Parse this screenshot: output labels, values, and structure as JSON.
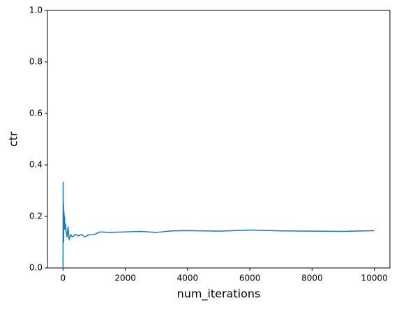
{
  "chart_data": {
    "type": "line",
    "xlabel": "num_iterations",
    "ylabel": "ctr",
    "xlim": [
      -500,
      10500
    ],
    "ylim": [
      0,
      1
    ],
    "xticks": [
      0,
      2000,
      4000,
      6000,
      8000,
      10000
    ],
    "yticks": [
      {
        "value": 0,
        "label": "0.0"
      },
      0.2,
      0.4,
      0.6,
      0.8,
      {
        "value": 1,
        "label": "1.0"
      }
    ],
    "grid": false,
    "series": [
      {
        "color": "#1f77b4",
        "x": [
          0,
          5,
          10,
          15,
          20,
          30,
          40,
          50,
          60,
          80,
          100,
          130,
          160,
          200,
          250,
          300,
          400,
          500,
          600,
          700,
          800,
          1000,
          1200,
          1500,
          2000,
          2500,
          3000,
          3500,
          4000,
          5000,
          6000,
          7000,
          8000,
          9000,
          10000
        ],
        "values": [
          0,
          0.333,
          0.2,
          0.25,
          0.1,
          0.22,
          0.18,
          0.2,
          0.15,
          0.17,
          0.14,
          0.12,
          0.16,
          0.11,
          0.13,
          0.12,
          0.13,
          0.125,
          0.13,
          0.12,
          0.128,
          0.13,
          0.14,
          0.138,
          0.14,
          0.142,
          0.138,
          0.144,
          0.145,
          0.143,
          0.147,
          0.144,
          0.143,
          0.142,
          0.145
        ]
      }
    ]
  }
}
